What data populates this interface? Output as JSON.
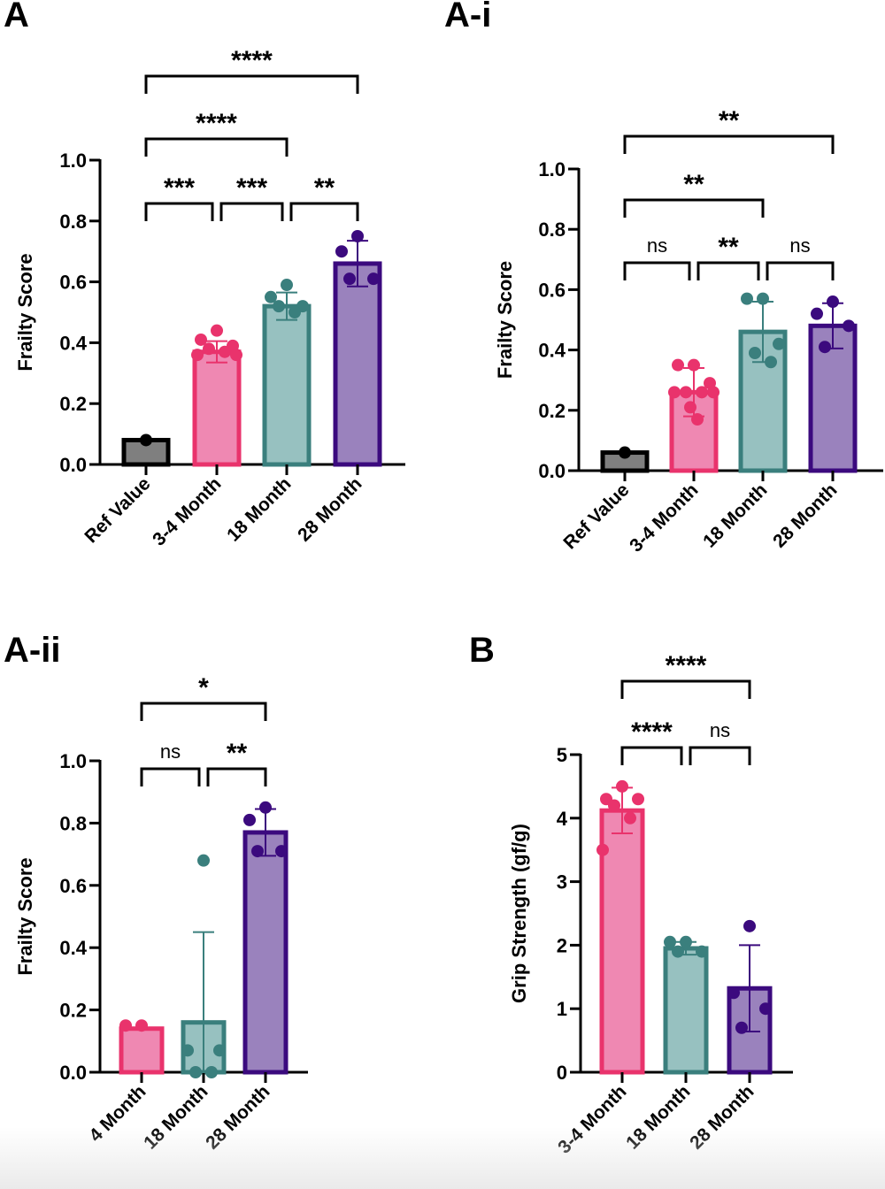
{
  "colors": {
    "ref": {
      "fill": "#7f7f7f",
      "stroke": "#000000",
      "dot": "#000000"
    },
    "young": {
      "fill": "#ef88b2",
      "stroke": "#e9336c",
      "dot": "#e9336c"
    },
    "mid": {
      "fill": "#97c1c0",
      "stroke": "#3a7f7d",
      "dot": "#3a7f7d"
    },
    "old": {
      "fill": "#9a82bd",
      "stroke": "#3b0a7e",
      "dot": "#3b0a7e"
    },
    "axis": "#000000"
  },
  "chart_data": [
    {
      "panel_label": "A",
      "type": "bar",
      "ylabel": "Frailty Score",
      "xlabel": "",
      "ylim": [
        0,
        1.0
      ],
      "yticks": [
        "0.0",
        "0.2",
        "0.4",
        "0.6",
        "0.8",
        "1.0"
      ],
      "categories": [
        "Ref Value",
        "3-4 Month",
        "18 Month",
        "28 Month"
      ],
      "series": [
        {
          "name": "Ref Value",
          "color_key": "ref",
          "mean": 0.08,
          "sd": 0,
          "points": [
            0.08
          ]
        },
        {
          "name": "3-4 Month",
          "color_key": "young",
          "mean": 0.37,
          "sd": 0.035,
          "points": [
            0.44,
            0.41,
            0.39,
            0.38,
            0.37,
            0.36,
            0.36
          ]
        },
        {
          "name": "18 Month",
          "color_key": "mid",
          "mean": 0.52,
          "sd": 0.045,
          "points": [
            0.59,
            0.55,
            0.52,
            0.52,
            0.5
          ]
        },
        {
          "name": "28 Month",
          "color_key": "old",
          "mean": 0.66,
          "sd": 0.075,
          "points": [
            0.75,
            0.7,
            0.61,
            0.61
          ]
        }
      ],
      "comparisons": [
        {
          "from": 0,
          "to": 3,
          "label": "****",
          "level": 3
        },
        {
          "from": 0,
          "to": 2,
          "label": "****",
          "level": 2
        },
        {
          "from": 0,
          "to": 1,
          "label": "***",
          "level": 1
        },
        {
          "from": 1,
          "to": 2,
          "label": "***",
          "level": 1
        },
        {
          "from": 2,
          "to": 3,
          "label": "**",
          "level": 1
        }
      ]
    },
    {
      "panel_label": "A-i",
      "type": "bar",
      "ylabel": "Frailty Score",
      "xlabel": "",
      "ylim": [
        0,
        1.0
      ],
      "yticks": [
        "0.0",
        "0.2",
        "0.4",
        "0.6",
        "0.8",
        "1.0"
      ],
      "categories": [
        "Ref Value",
        "3-4 Month",
        "18 Month",
        "28 Month"
      ],
      "series": [
        {
          "name": "Ref Value",
          "color_key": "ref",
          "mean": 0.06,
          "sd": 0,
          "points": [
            0.06
          ]
        },
        {
          "name": "3-4 Month",
          "color_key": "young",
          "mean": 0.26,
          "sd": 0.08,
          "points": [
            0.35,
            0.35,
            0.29,
            0.26,
            0.26,
            0.26,
            0.26,
            0.21,
            0.17
          ]
        },
        {
          "name": "18 Month",
          "color_key": "mid",
          "mean": 0.46,
          "sd": 0.1,
          "points": [
            0.57,
            0.57,
            0.42,
            0.39,
            0.36
          ]
        },
        {
          "name": "28 Month",
          "color_key": "old",
          "mean": 0.48,
          "sd": 0.075,
          "points": [
            0.56,
            0.52,
            0.48,
            0.41
          ]
        }
      ],
      "comparisons": [
        {
          "from": 0,
          "to": 3,
          "label": "**",
          "level": 3
        },
        {
          "from": 0,
          "to": 2,
          "label": "**",
          "level": 2
        },
        {
          "from": 0,
          "to": 1,
          "label": "ns",
          "level": 1
        },
        {
          "from": 1,
          "to": 2,
          "label": "**",
          "level": 1
        },
        {
          "from": 2,
          "to": 3,
          "label": "ns",
          "level": 1
        }
      ]
    },
    {
      "panel_label": "A-ii",
      "type": "bar",
      "ylabel": "Frailty Score",
      "xlabel": "",
      "ylim": [
        0,
        1.0
      ],
      "yticks": [
        "0.0",
        "0.2",
        "0.4",
        "0.6",
        "0.8",
        "1.0"
      ],
      "categories": [
        "4 Month",
        "18 Month",
        "28 Month"
      ],
      "series": [
        {
          "name": "4 Month",
          "color_key": "young",
          "mean": 0.14,
          "sd": 0,
          "points": [
            0.15,
            0.15
          ]
        },
        {
          "name": "18 Month",
          "color_key": "mid",
          "mean": 0.16,
          "sd": 0.29,
          "points": [
            0.68,
            0.07,
            0.07,
            0.0,
            0.0
          ]
        },
        {
          "name": "28 Month",
          "color_key": "old",
          "mean": 0.77,
          "sd": 0.075,
          "points": [
            0.85,
            0.81,
            0.71,
            0.71
          ]
        }
      ],
      "comparisons": [
        {
          "from": 0,
          "to": 2,
          "label": "*",
          "level": 2
        },
        {
          "from": 0,
          "to": 1,
          "label": "ns",
          "level": 1
        },
        {
          "from": 1,
          "to": 2,
          "label": "**",
          "level": 1
        }
      ]
    },
    {
      "panel_label": "B",
      "type": "bar",
      "ylabel": "Grip Strength (gf/g)",
      "xlabel": "",
      "ylim": [
        0,
        5
      ],
      "yticks": [
        "0",
        "1",
        "2",
        "3",
        "4",
        "5"
      ],
      "categories": [
        "3-4 Month",
        "18 Month",
        "28 Month"
      ],
      "series": [
        {
          "name": "3-4 Month",
          "color_key": "young",
          "mean": 4.12,
          "sd": 0.36,
          "points": [
            4.5,
            4.3,
            4.3,
            4.2,
            4.0,
            3.5
          ]
        },
        {
          "name": "18 Month",
          "color_key": "mid",
          "mean": 1.95,
          "sd": 0.1,
          "points": [
            2.05,
            2.05,
            1.9,
            1.9
          ]
        },
        {
          "name": "28 Month",
          "color_key": "old",
          "mean": 1.32,
          "sd": 0.68,
          "points": [
            2.3,
            1.25,
            1.0,
            0.7
          ]
        }
      ],
      "comparisons": [
        {
          "from": 0,
          "to": 2,
          "label": "****",
          "level": 2
        },
        {
          "from": 0,
          "to": 1,
          "label": "****",
          "level": 1
        },
        {
          "from": 1,
          "to": 2,
          "label": "ns",
          "level": 1
        }
      ]
    }
  ]
}
